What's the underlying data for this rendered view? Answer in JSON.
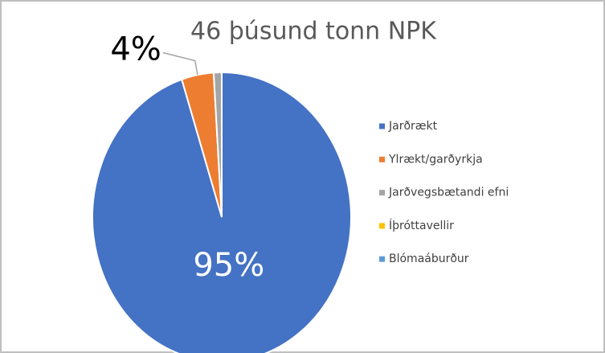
{
  "chart_data": {
    "type": "pie",
    "title": "46 þúsund tonn NPK",
    "categories": [
      "Jarðrækt",
      "Ylrækt/garðyrkja",
      "Jarðvegsbætandi efni",
      "Íþróttavellir",
      "Blómaáburður"
    ],
    "values": [
      95,
      4,
      1,
      0,
      0
    ],
    "value_labels": [
      "95%",
      "4%",
      null,
      null,
      null
    ],
    "colors": [
      "#4472c4",
      "#ed7d31",
      "#a5a5a5",
      "#ffc000",
      "#5b9bd5"
    ],
    "legend": "right"
  }
}
